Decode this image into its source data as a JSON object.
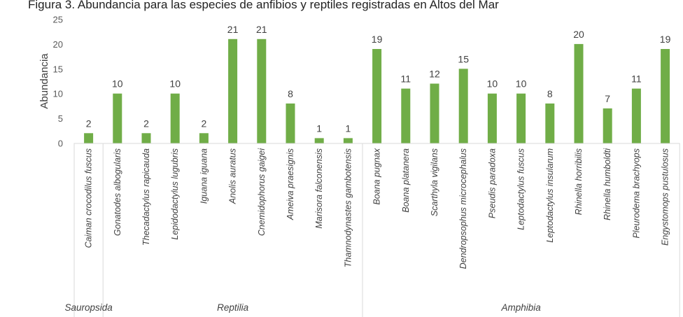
{
  "chart_data": {
    "type": "bar",
    "title": "Figura 3. Abundancia para las especies de anfibios y reptiles registradas en Altos del Mar",
    "ylabel": "Abundancia",
    "xlabel": "",
    "ylim": [
      0,
      25
    ],
    "yticks": [
      0,
      5,
      10,
      15,
      20,
      25
    ],
    "grid": false,
    "legend": "none",
    "bar_color": "#70AD47",
    "categories": [
      "Caiman crocodilus fuscus",
      "Gonatodes albogularis",
      "Thecadactylus rapicauda",
      "Lepidodactylus lugubris",
      "Iguana iguana",
      "Anolis auratus",
      "Cnemidophorus gaigei",
      "Ameiva praesignis",
      "Marisora falconensis",
      "Thamnodynastes gambotensis",
      "Boana pugnax",
      "Boana platanera",
      "Scarthyla vigilans",
      "Dendropsophus microcephalus",
      "Pseudis paradoxa",
      "Leptodactylus fuscus",
      "Leptodactylus insularum",
      "Rhinella horribilis",
      "Rhinella humboldti",
      "Pleurodema brachyops",
      "Engystomops pustulosus"
    ],
    "values": [
      2,
      10,
      2,
      10,
      2,
      21,
      21,
      8,
      1,
      1,
      19,
      11,
      12,
      15,
      10,
      10,
      8,
      20,
      7,
      11,
      19
    ],
    "groups": [
      {
        "name": "Sauropsida",
        "count": 1
      },
      {
        "name": "Reptilia",
        "count": 9
      },
      {
        "name": "Amphibia",
        "count": 11
      }
    ]
  }
}
